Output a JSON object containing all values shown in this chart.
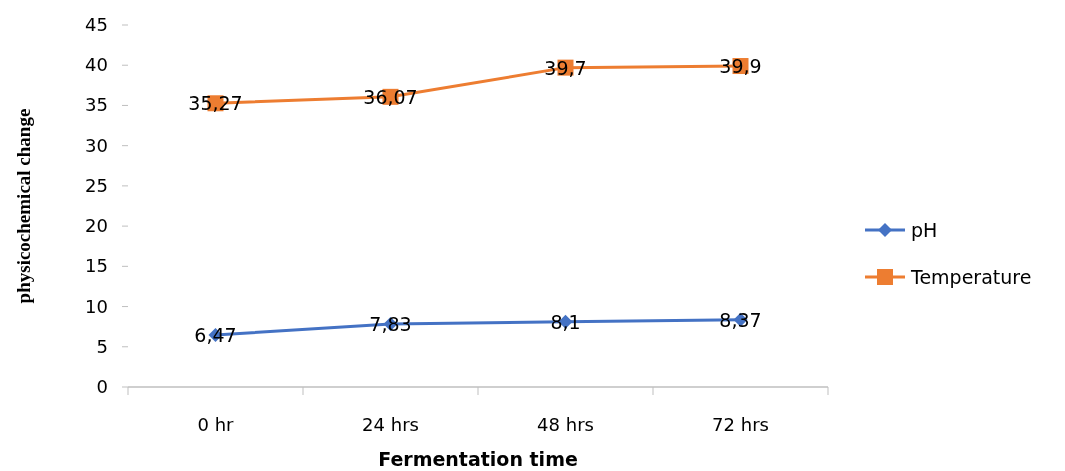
{
  "chart_data": {
    "type": "line",
    "xlabel": "Fermentation time",
    "ylabel": "physicochemical change",
    "categories": [
      "0 hr",
      "24 hrs",
      "48 hrs",
      "72 hrs"
    ],
    "series": [
      {
        "name": "pH",
        "color": "#4472c4",
        "marker": "diamond",
        "values": [
          6.47,
          7.83,
          8.1,
          8.37
        ],
        "value_labels": [
          "6,47",
          "7,83",
          "8,1",
          "8,37"
        ]
      },
      {
        "name": "Temperature",
        "color": "#ed7d31",
        "marker": "square",
        "values": [
          35.27,
          36.07,
          39.7,
          39.9
        ],
        "value_labels": [
          "35,27",
          "36,07",
          "39,7",
          "39,9"
        ]
      }
    ],
    "ylim": [
      0,
      45
    ],
    "yticks": [
      0,
      5,
      10,
      15,
      20,
      25,
      30,
      35,
      40,
      45
    ],
    "grid": false,
    "legend": "right"
  }
}
